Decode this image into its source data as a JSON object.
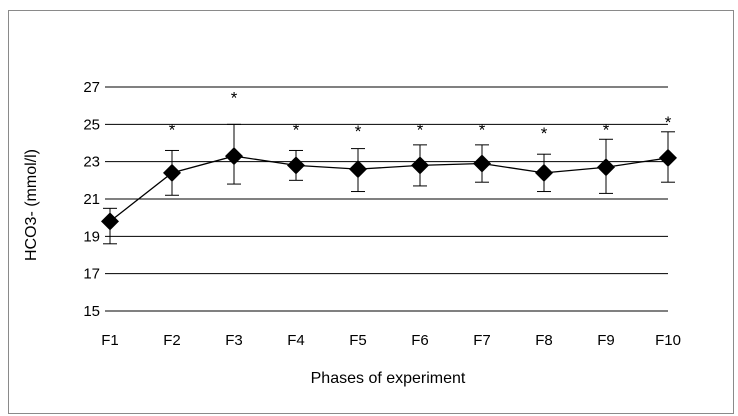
{
  "chart_data": {
    "type": "line",
    "title": "",
    "xlabel": "Phases of experiment",
    "ylabel": "HCO3- (mmol/l)",
    "categories": [
      "F1",
      "F2",
      "F3",
      "F4",
      "F5",
      "F6",
      "F7",
      "F8",
      "F9",
      "F10"
    ],
    "yticks": [
      "15",
      "17",
      "19",
      "21",
      "23",
      "25",
      "27"
    ],
    "ylim": [
      15,
      27
    ],
    "grid": "horizontal",
    "legend": "none",
    "series": [
      {
        "values": [
          19.8,
          22.4,
          23.3,
          22.8,
          22.6,
          22.8,
          22.9,
          22.4,
          22.7,
          23.2
        ],
        "error_low": [
          18.6,
          21.2,
          21.8,
          22.0,
          21.4,
          21.7,
          21.9,
          21.4,
          21.3,
          21.9
        ],
        "error_high": [
          20.5,
          23.6,
          25.0,
          23.6,
          23.7,
          23.9,
          23.9,
          23.4,
          24.2,
          24.6
        ],
        "marker": "diamond",
        "color": "#000000"
      }
    ],
    "significance": {
      "marker": "*",
      "flags": [
        false,
        true,
        true,
        true,
        true,
        true,
        true,
        true,
        true,
        true
      ],
      "values": [
        null,
        25.0,
        26.7,
        25.0,
        24.9,
        25.0,
        25.0,
        24.8,
        25.0,
        25.4
      ]
    }
  }
}
